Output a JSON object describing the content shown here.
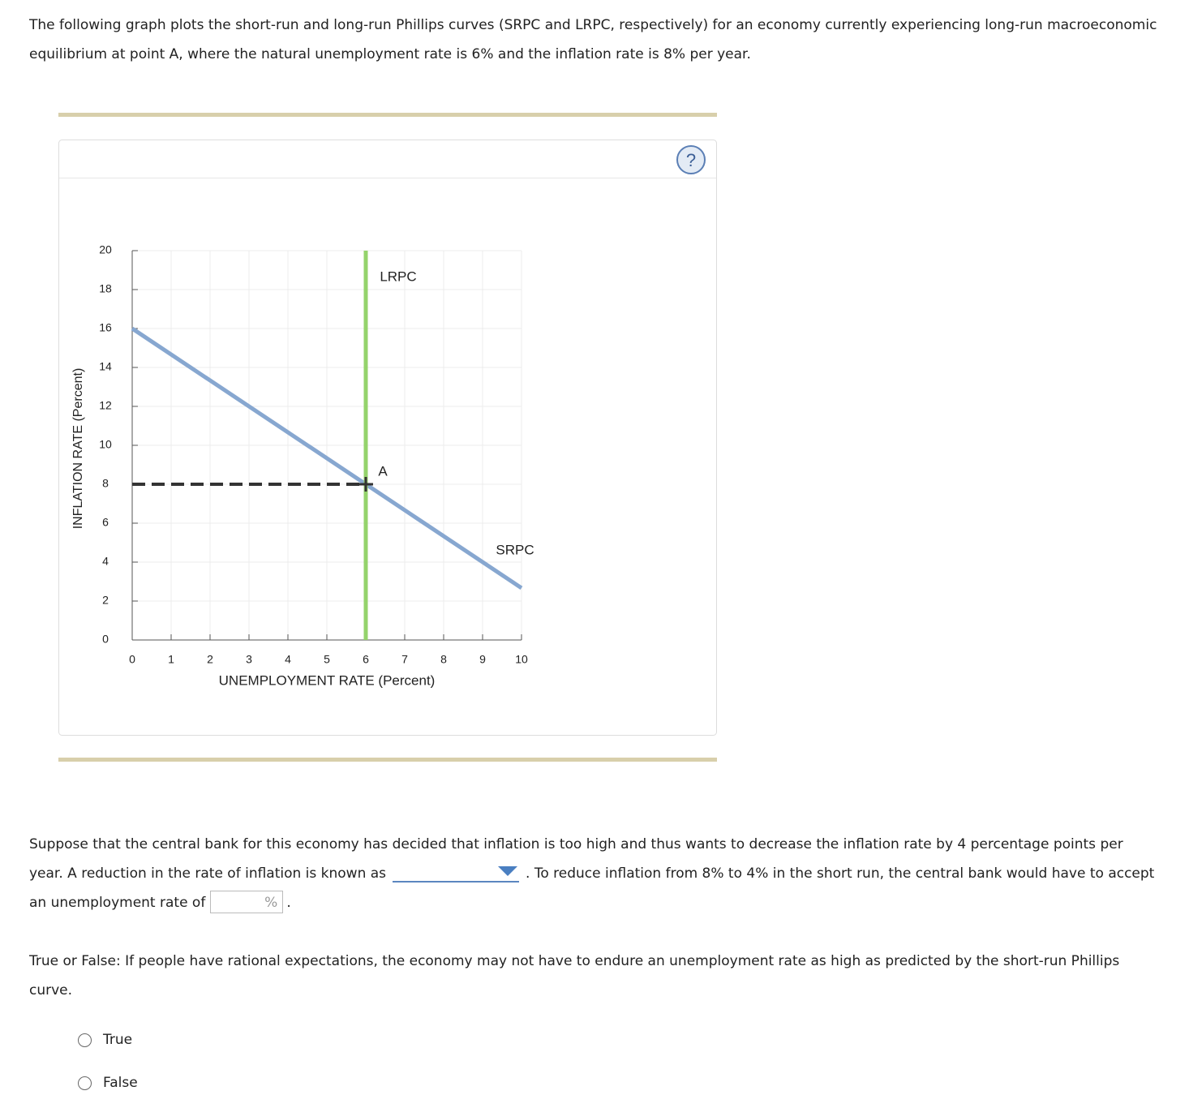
{
  "intro": "The following graph plots the short-run and long-run Phillips curves (SRPC and LRPC, respectively) for an economy currently experiencing long-run macroeconomic equilibrium at point A, where the natural unemployment rate is 6% and the inflation rate is 8% per year.",
  "help_icon": "?",
  "chart_data": {
    "type": "line",
    "x_label": "UNEMPLOYMENT RATE (Percent)",
    "y_label": "INFLATION RATE (Percent)",
    "xlim": [
      0,
      10
    ],
    "ylim": [
      0,
      20
    ],
    "xticks": [
      0,
      1,
      2,
      3,
      4,
      5,
      6,
      7,
      8,
      9,
      10
    ],
    "yticks": [
      0,
      2,
      4,
      6,
      8,
      10,
      12,
      14,
      16,
      18,
      20
    ],
    "grid": true,
    "series": [
      {
        "name": "SRPC",
        "color": "#87a7d0",
        "x": [
          0,
          10
        ],
        "values": [
          16,
          2.67
        ]
      },
      {
        "name": "LRPC",
        "color": "#94d36b",
        "x": [
          6,
          6
        ],
        "values": [
          0,
          20
        ]
      }
    ],
    "points": [
      {
        "label": "A",
        "x": 6,
        "y": 8
      }
    ]
  },
  "question": {
    "text_before": "Suppose that the central bank for this economy has decided that inflation is too high and thus wants to decrease the inflation rate by 4 percentage points per year. A reduction in the rate of inflation is known as",
    "text_after": ". To reduce inflation from 8% to 4% in the short run, the central bank would have to accept an unemployment rate of",
    "input_unit": "%",
    "end": "."
  },
  "true_false": {
    "question": "True or False: If people have rational expectations, the economy may not have to endure an unemployment rate as high as predicted by the short-run Phillips curve.",
    "options": [
      "True",
      "False"
    ]
  }
}
